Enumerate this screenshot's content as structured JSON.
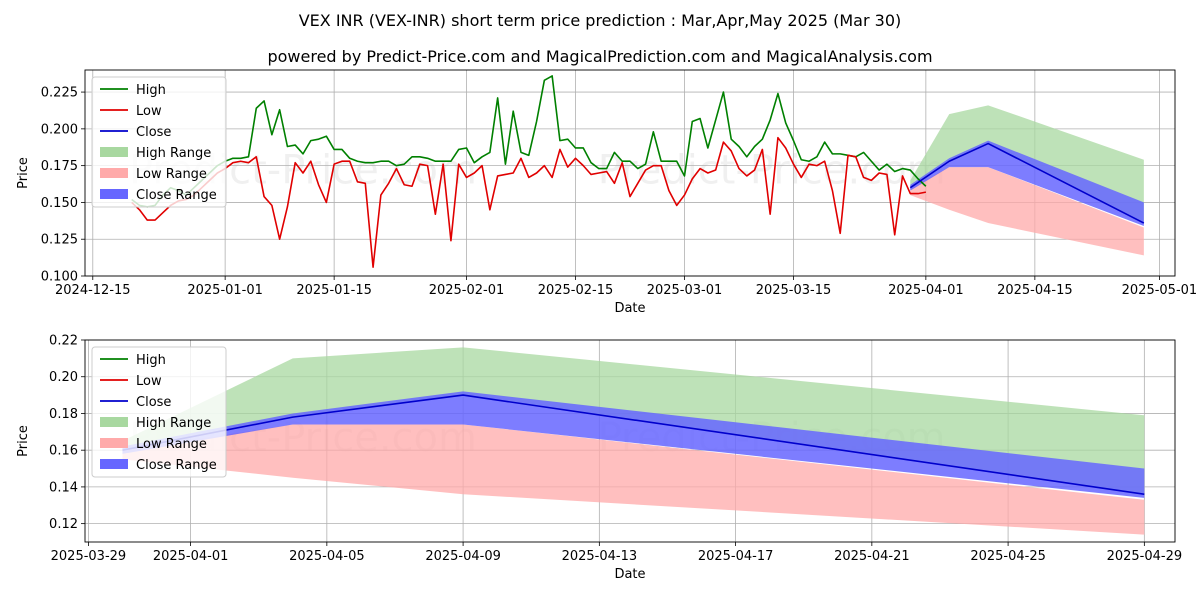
{
  "title": "VEX INR (VEX-INR) short term price prediction : Mar,Apr,May 2025 (Mar 30)",
  "subtitle": "powered by Predict-Price.com and MagicalPrediction.com and MagicalAnalysis.com",
  "watermark": "Predict-Price.com",
  "colors": {
    "high": "#008000",
    "low": "#e00000",
    "close": "#0000cc",
    "high_range": "#a8d8a0",
    "low_range": "#ffaaaa",
    "close_range": "#6666ff"
  },
  "chart_data": [
    {
      "type": "line",
      "panel": "history",
      "xlabel": "Date",
      "ylabel": "Price",
      "xlim": [
        "2024-12-14",
        "2025-05-03"
      ],
      "ylim": [
        0.1,
        0.24
      ],
      "grid": true,
      "legend_position": "top-left",
      "x_ticks": [
        "2024-12-15",
        "2025-01-01",
        "2025-01-15",
        "2025-02-01",
        "2025-02-15",
        "2025-03-01",
        "2025-03-15",
        "2025-04-01",
        "2025-04-15",
        "2025-05-01"
      ],
      "y_ticks": [
        0.1,
        0.125,
        0.15,
        0.175,
        0.2,
        0.225
      ],
      "y_tick_labels": [
        "0.100",
        "0.125",
        "0.150",
        "0.175",
        "0.200",
        "0.225"
      ],
      "legend": [
        "High",
        "Low",
        "Close",
        "High Range",
        "Low Range",
        "Close Range"
      ],
      "history_start": "2024-12-20",
      "high": [
        0.152,
        0.148,
        0.147,
        0.148,
        0.155,
        0.16,
        0.158,
        0.155,
        0.16,
        0.165,
        0.17,
        0.175,
        0.178,
        0.18,
        0.18,
        0.181,
        0.214,
        0.219,
        0.196,
        0.213,
        0.188,
        0.189,
        0.183,
        0.192,
        0.193,
        0.195,
        0.186,
        0.186,
        0.18,
        0.178,
        0.177,
        0.177,
        0.178,
        0.178,
        0.175,
        0.176,
        0.181,
        0.181,
        0.18,
        0.178,
        0.178,
        0.178,
        0.186,
        0.187,
        0.177,
        0.181,
        0.184,
        0.221,
        0.176,
        0.212,
        0.184,
        0.182,
        0.205,
        0.233,
        0.236,
        0.192,
        0.193,
        0.187,
        0.187,
        0.177,
        0.173,
        0.173,
        0.184,
        0.178,
        0.178,
        0.173,
        0.176,
        0.198,
        0.178,
        0.178,
        0.178,
        0.168,
        0.205,
        0.207,
        0.187,
        0.206,
        0.225,
        0.193,
        0.188,
        0.181,
        0.188,
        0.193,
        0.206,
        0.224,
        0.204,
        0.192,
        0.179,
        0.178,
        0.181,
        0.191,
        0.183,
        0.183,
        0.182,
        0.181,
        0.184,
        0.178,
        0.172,
        0.176,
        0.171,
        0.173,
        0.172,
        0.166,
        0.161
      ],
      "low": [
        0.15,
        0.145,
        0.138,
        0.138,
        0.143,
        0.148,
        0.151,
        0.152,
        0.155,
        0.16,
        0.165,
        0.17,
        0.173,
        0.177,
        0.178,
        0.177,
        0.181,
        0.154,
        0.148,
        0.125,
        0.147,
        0.177,
        0.17,
        0.178,
        0.162,
        0.15,
        0.176,
        0.178,
        0.178,
        0.164,
        0.163,
        0.106,
        0.155,
        0.163,
        0.173,
        0.162,
        0.161,
        0.176,
        0.175,
        0.142,
        0.176,
        0.124,
        0.176,
        0.167,
        0.17,
        0.175,
        0.145,
        0.168,
        0.169,
        0.17,
        0.18,
        0.167,
        0.17,
        0.175,
        0.167,
        0.186,
        0.174,
        0.18,
        0.175,
        0.169,
        0.17,
        0.171,
        0.163,
        0.177,
        0.154,
        0.163,
        0.172,
        0.175,
        0.175,
        0.158,
        0.148,
        0.155,
        0.166,
        0.173,
        0.17,
        0.172,
        0.191,
        0.185,
        0.173,
        0.168,
        0.172,
        0.186,
        0.142,
        0.194,
        0.187,
        0.176,
        0.167,
        0.176,
        0.175,
        0.178,
        0.158,
        0.129,
        0.182,
        0.181,
        0.167,
        0.165,
        0.17,
        0.169,
        0.128,
        0.168,
        0.156,
        0.156,
        0.157
      ],
      "forecast_x": [
        "2025-03-30",
        "2025-04-04",
        "2025-04-09",
        "2025-04-29"
      ],
      "close_forecast": [
        0.16,
        0.178,
        0.19,
        0.136
      ],
      "high_range": {
        "upper": [
          0.165,
          0.21,
          0.216,
          0.179
        ],
        "lower": [
          0.16,
          0.178,
          0.19,
          0.136
        ]
      },
      "low_range": {
        "upper": [
          0.16,
          0.174,
          0.174,
          0.133
        ],
        "lower": [
          0.155,
          0.145,
          0.136,
          0.114
        ]
      },
      "close_range": {
        "upper": [
          0.162,
          0.18,
          0.192,
          0.15
        ],
        "lower": [
          0.158,
          0.174,
          0.174,
          0.134
        ]
      }
    },
    {
      "type": "line",
      "panel": "forecast",
      "xlabel": "Date",
      "ylabel": "Price",
      "xlim": [
        "2025-03-28.9",
        "2025-04-29.9"
      ],
      "ylim": [
        0.11,
        0.22
      ],
      "grid": true,
      "legend_position": "top-left",
      "x_ticks": [
        "2025-03-29",
        "2025-04-01",
        "2025-04-05",
        "2025-04-09",
        "2025-04-13",
        "2025-04-17",
        "2025-04-21",
        "2025-04-25",
        "2025-04-29"
      ],
      "y_ticks": [
        0.12,
        0.14,
        0.16,
        0.18,
        0.2,
        0.22
      ],
      "y_tick_labels": [
        "0.12",
        "0.14",
        "0.16",
        "0.18",
        "0.20",
        "0.22"
      ],
      "legend": [
        "High",
        "Low",
        "Close",
        "High Range",
        "Low Range",
        "Close Range"
      ],
      "forecast_x": [
        "2025-03-30",
        "2025-04-04",
        "2025-04-09",
        "2025-04-29"
      ],
      "close_forecast": [
        0.16,
        0.178,
        0.19,
        0.136
      ],
      "high_range": {
        "upper": [
          0.165,
          0.21,
          0.216,
          0.179
        ],
        "lower": [
          0.16,
          0.178,
          0.19,
          0.136
        ]
      },
      "low_range": {
        "upper": [
          0.16,
          0.174,
          0.174,
          0.133
        ],
        "lower": [
          0.155,
          0.145,
          0.136,
          0.114
        ]
      },
      "close_range": {
        "upper": [
          0.162,
          0.18,
          0.192,
          0.15
        ],
        "lower": [
          0.158,
          0.174,
          0.174,
          0.134
        ]
      }
    }
  ]
}
